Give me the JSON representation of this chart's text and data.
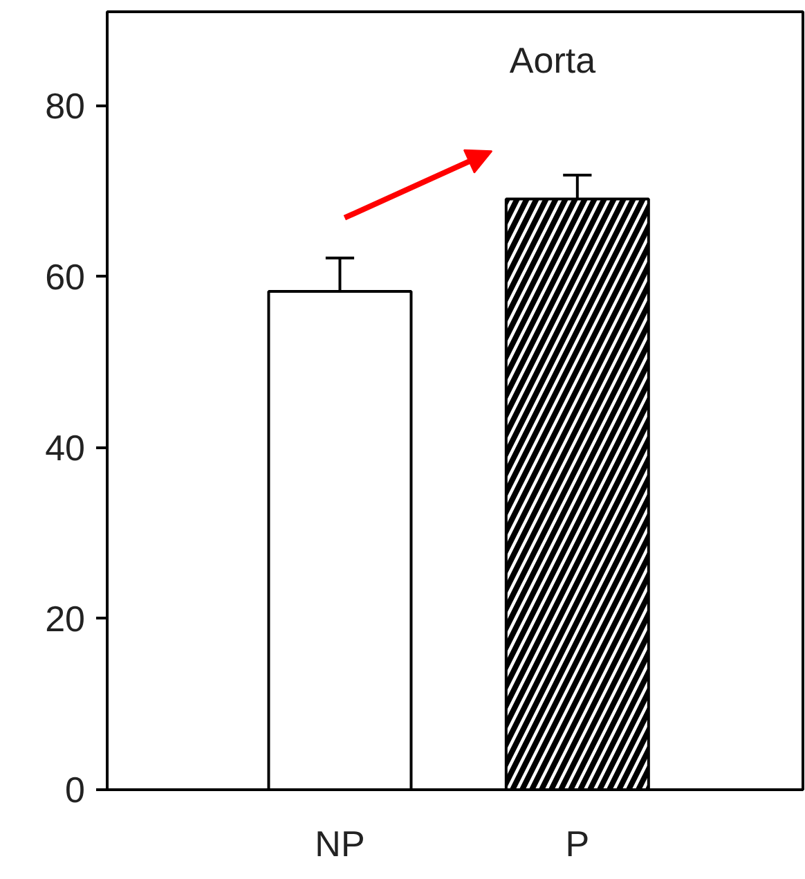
{
  "chart_data": {
    "type": "bar",
    "title": "Aorta",
    "categories": [
      "NP",
      "P"
    ],
    "values": [
      58.3,
      69.1
    ],
    "errors": [
      3.9,
      2.8
    ],
    "colors": [
      "#ffffff",
      "#000000"
    ],
    "ylim": [
      0,
      91
    ],
    "yticks": [
      0,
      20,
      40,
      60,
      80
    ],
    "grid": false
  }
}
